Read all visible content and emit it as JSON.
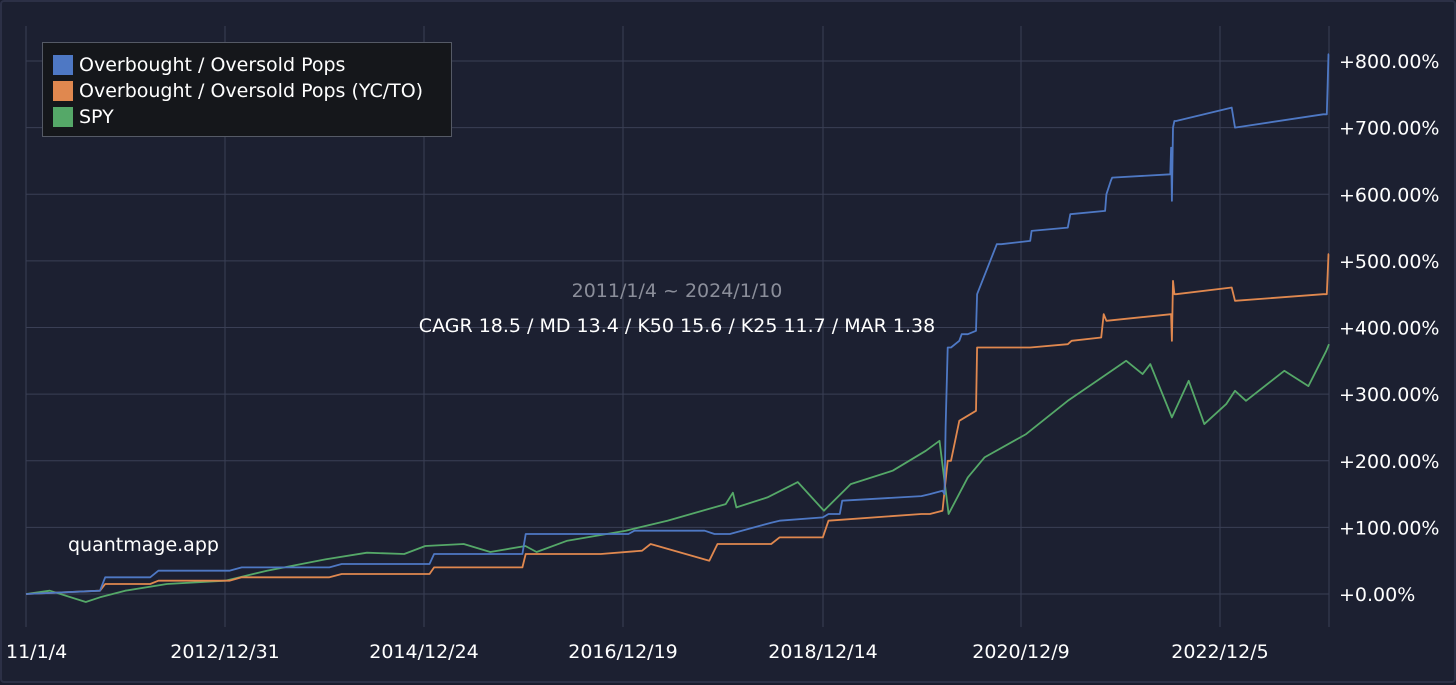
{
  "chart_data": {
    "type": "line",
    "subtitle": "2011/1/4 ~ 2024/1/10",
    "stats": "CAGR 18.5 / MD 13.4 / K50 15.6 / K25 11.7 / MAR 1.38",
    "watermark": "quantmage.app",
    "x_ticks": [
      "11/1/4",
      "2012/12/31",
      "2014/12/24",
      "2016/12/19",
      "2018/12/14",
      "2020/12/9",
      "2022/12/5"
    ],
    "x_range": [
      "2011-01-04",
      "2024-01-10"
    ],
    "y_ticks": [
      "+0.00%",
      "+100.00%",
      "+200.00%",
      "+300.00%",
      "+400.00%",
      "+500.00%",
      "+600.00%",
      "+700.00%",
      "+800.00%"
    ],
    "ylim": [
      -50,
      850
    ],
    "y_axis_side": "right",
    "grid": true,
    "legend_position": "top-left",
    "series": [
      {
        "name": "Overbought / Oversold Pops",
        "color": "#4e78c4",
        "x": [
          "2011-01-04",
          "2011-10-01",
          "2011-10-20",
          "2012-04-01",
          "2012-05-01",
          "2013-01-15",
          "2013-03-01",
          "2014-01-15",
          "2014-03-01",
          "2015-01-15",
          "2015-02-01",
          "2015-12-20",
          "2016-01-01",
          "2017-01-10",
          "2017-02-01",
          "2017-10-15",
          "2017-11-20",
          "2018-01-15",
          "2018-06-15",
          "2018-07-15",
          "2018-12-20",
          "2019-01-10",
          "2019-02-20",
          "2019-03-01",
          "2019-12-15",
          "2020-01-15",
          "2020-03-01",
          "2020-03-08",
          "2020-03-12",
          "2020-03-20",
          "2020-04-01",
          "2020-05-01",
          "2020-05-10",
          "2020-06-01",
          "2020-07-01",
          "2020-07-05",
          "2020-09-15",
          "2020-10-01",
          "2021-01-15",
          "2021-01-20",
          "2021-06-01",
          "2021-06-10",
          "2021-10-15",
          "2021-10-20",
          "2021-11-05",
          "2021-11-10",
          "2022-06-10",
          "2022-06-13",
          "2022-06-16",
          "2022-06-20",
          "2022-06-25",
          "2022-07-01",
          "2023-01-20",
          "2023-02-01",
          "2023-12-20",
          "2024-01-02",
          "2024-01-08",
          "2024-01-10"
        ],
        "y": [
          0,
          5,
          25,
          25,
          35,
          35,
          40,
          40,
          45,
          45,
          60,
          60,
          90,
          90,
          95,
          95,
          90,
          90,
          107,
          110,
          115,
          120,
          120,
          140,
          147,
          150,
          155,
          150,
          250,
          370,
          370,
          380,
          390,
          390,
          395,
          450,
          525,
          525,
          530,
          545,
          550,
          570,
          575,
          600,
          620,
          625,
          630,
          670,
          590,
          700,
          710,
          710,
          730,
          700,
          720,
          720,
          810,
          810
        ]
      },
      {
        "name": "Overbought / Oversold Pops (YC/TO)",
        "color": "#e0884f",
        "x": [
          "2011-01-04",
          "2011-10-01",
          "2011-10-20",
          "2012-04-01",
          "2012-05-01",
          "2013-01-15",
          "2013-03-01",
          "2014-01-15",
          "2014-03-01",
          "2015-01-15",
          "2015-02-01",
          "2015-12-20",
          "2016-01-01",
          "2016-10-01",
          "2017-03-01",
          "2017-04-01",
          "2017-11-01",
          "2017-12-01",
          "2018-06-15",
          "2018-07-15",
          "2018-12-20",
          "2019-01-10",
          "2019-12-15",
          "2020-01-15",
          "2020-03-01",
          "2020-03-12",
          "2020-03-20",
          "2020-04-01",
          "2020-05-01",
          "2020-07-01",
          "2020-07-05",
          "2021-01-15",
          "2021-06-01",
          "2021-06-15",
          "2021-10-01",
          "2021-10-10",
          "2021-10-20",
          "2022-06-13",
          "2022-06-16",
          "2022-06-20",
          "2022-06-25",
          "2022-07-01",
          "2023-01-20",
          "2023-02-01",
          "2023-12-20",
          "2024-01-02",
          "2024-01-08",
          "2024-01-10"
        ],
        "y": [
          0,
          5,
          15,
          15,
          20,
          20,
          25,
          25,
          30,
          30,
          40,
          40,
          60,
          60,
          65,
          75,
          50,
          75,
          75,
          85,
          85,
          110,
          120,
          120,
          125,
          170,
          200,
          200,
          260,
          275,
          370,
          370,
          375,
          380,
          385,
          420,
          410,
          420,
          380,
          470,
          450,
          450,
          460,
          440,
          450,
          450,
          510,
          510
        ]
      },
      {
        "name": "SPY",
        "color": "#55a868",
        "x": [
          "2011-01-04",
          "2011-04-01",
          "2011-08-10",
          "2011-10-01",
          "2012-01-01",
          "2012-06-01",
          "2012-12-31",
          "2013-06-01",
          "2013-12-31",
          "2014-06-01",
          "2014-10-15",
          "2014-12-31",
          "2015-05-20",
          "2015-08-25",
          "2015-12-31",
          "2016-02-10",
          "2016-06-01",
          "2016-12-31",
          "2017-06-01",
          "2017-12-31",
          "2018-01-26",
          "2018-02-08",
          "2018-06-01",
          "2018-09-20",
          "2018-12-24",
          "2019-04-01",
          "2019-09-01",
          "2019-12-31",
          "2020-02-19",
          "2020-03-23",
          "2020-06-01",
          "2020-08-01",
          "2020-12-31",
          "2021-06-01",
          "2021-12-31",
          "2022-03-01",
          "2022-03-29",
          "2022-06-16",
          "2022-08-16",
          "2022-10-12",
          "2022-12-31",
          "2023-02-01",
          "2023-03-13",
          "2023-07-31",
          "2023-10-27",
          "2023-12-31",
          "2024-01-10"
        ],
        "y": [
          0,
          5,
          -12,
          -5,
          5,
          15,
          20,
          35,
          52,
          62,
          60,
          72,
          75,
          63,
          72,
          63,
          80,
          95,
          110,
          135,
          152,
          130,
          145,
          168,
          125,
          165,
          185,
          215,
          230,
          120,
          175,
          205,
          240,
          290,
          350,
          330,
          345,
          265,
          320,
          255,
          285,
          305,
          290,
          335,
          312,
          365,
          375
        ]
      }
    ]
  }
}
